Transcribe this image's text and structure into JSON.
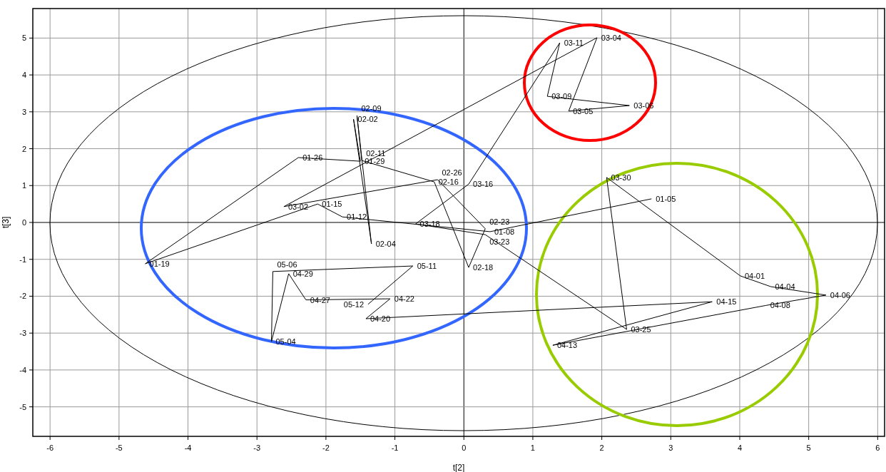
{
  "chart_data": {
    "type": "line",
    "xlabel": "t[2]",
    "ylabel": "t[3]",
    "xlim": [
      -6.25,
      6.1
    ],
    "ylim": [
      -5.8,
      5.8
    ],
    "xticks": [
      -6,
      -5,
      -4,
      -3,
      -2,
      -1,
      0,
      1,
      2,
      3,
      4,
      5,
      6
    ],
    "yticks": [
      -5,
      -4,
      -3,
      -2,
      -1,
      0,
      1,
      2,
      3,
      4,
      5
    ],
    "grid": true,
    "marker": "none",
    "line_style": "solid",
    "series": [
      {
        "color": "#000000",
        "x": [
          2.72,
          0.38,
          -1.76,
          -2.12,
          -4.62,
          -2.4,
          -1.5,
          -1.6,
          -1.34,
          -1.55,
          -1.48,
          -0.43,
          0.07,
          0.31,
          -0.38,
          -2.61,
          1.93,
          1.52,
          2.4,
          1.21,
          1.39,
          0.07,
          -0.7,
          0.31,
          2.36,
          2.07,
          4.01,
          4.45,
          5.25,
          4.38,
          1.29,
          3.6,
          -1.42,
          -1.07,
          -2.29,
          -2.54,
          -2.79,
          -2.77,
          -0.74,
          -1.39
        ],
        "values": [
          0.64,
          -0.25,
          0.15,
          0.5,
          -1.12,
          1.76,
          1.66,
          2.8,
          -0.58,
          2.9,
          1.68,
          1.1,
          -1.22,
          -0.17,
          1.16,
          0.43,
          5.01,
          3.02,
          3.17,
          3.42,
          4.87,
          1.04,
          -0.04,
          -0.33,
          -2.9,
          1.22,
          -1.45,
          -1.74,
          -1.97,
          -2.25,
          -3.33,
          -2.15,
          -2.61,
          -2.07,
          -2.1,
          -1.39,
          -3.23,
          -1.33,
          -1.18,
          -2.22
        ]
      }
    ],
    "annotations": [
      {
        "text": "01-05",
        "x": 2.72,
        "y": 0.64
      },
      {
        "text": "01-08",
        "x": 0.38,
        "y": -0.25
      },
      {
        "text": "01-12",
        "x": -1.76,
        "y": 0.15
      },
      {
        "text": "01-15",
        "x": -2.12,
        "y": 0.5
      },
      {
        "text": "01-19",
        "x": -4.62,
        "y": -1.12
      },
      {
        "text": "01-26",
        "x": -2.4,
        "y": 1.76
      },
      {
        "text": "01-29",
        "x": -1.5,
        "y": 1.66
      },
      {
        "text": "02-02",
        "x": -1.6,
        "y": 2.8
      },
      {
        "text": "02-04",
        "x": -1.34,
        "y": -0.58
      },
      {
        "text": "02-09",
        "x": -1.55,
        "y": 2.9
      },
      {
        "text": "02-11",
        "x": -1.48,
        "y": 1.68
      },
      {
        "text": "02-16",
        "x": -0.43,
        "y": 1.1
      },
      {
        "text": "02-18",
        "x": 0.07,
        "y": -1.22
      },
      {
        "text": "02-23",
        "x": 0.31,
        "y": -0.17
      },
      {
        "text": "02-26",
        "x": -0.38,
        "y": 1.16
      },
      {
        "text": "03-02",
        "x": -2.61,
        "y": 0.43
      },
      {
        "text": "03-04",
        "x": 1.93,
        "y": 5.01
      },
      {
        "text": "03-05",
        "x": 1.52,
        "y": 3.02
      },
      {
        "text": "03-06",
        "x": 2.4,
        "y": 3.17
      },
      {
        "text": "03-09",
        "x": 1.21,
        "y": 3.42
      },
      {
        "text": "03-11",
        "x": 1.39,
        "y": 4.87
      },
      {
        "text": "03-16",
        "x": 0.07,
        "y": 1.04
      },
      {
        "text": "03-18",
        "x": -0.7,
        "y": -0.04
      },
      {
        "text": "03-23",
        "x": 0.31,
        "y": -0.33
      },
      {
        "text": "03-25",
        "x": 2.36,
        "y": -2.9
      },
      {
        "text": "03-30",
        "x": 2.07,
        "y": 1.22
      },
      {
        "text": "04-01",
        "x": 4.01,
        "y": -1.45
      },
      {
        "text": "04-04",
        "x": 4.45,
        "y": -1.74
      },
      {
        "text": "04-06",
        "x": 5.25,
        "y": -1.97
      },
      {
        "text": "04-08",
        "x": 4.38,
        "y": -2.25
      },
      {
        "text": "04-13",
        "x": 1.29,
        "y": -3.33
      },
      {
        "text": "04-15",
        "x": 3.6,
        "y": -2.15
      },
      {
        "text": "04-20",
        "x": -1.42,
        "y": -2.61
      },
      {
        "text": "04-22",
        "x": -1.07,
        "y": -2.07
      },
      {
        "text": "04-27",
        "x": -2.29,
        "y": -2.1
      },
      {
        "text": "04-29",
        "x": -2.54,
        "y": -1.39
      },
      {
        "text": "05-04",
        "x": -2.79,
        "y": -3.23
      },
      {
        "text": "05-06",
        "x": -2.77,
        "y": -1.33
      },
      {
        "text": "05-11",
        "x": -0.74,
        "y": -1.18
      },
      {
        "text": "05-12",
        "x": -1.39,
        "y": -2.22
      }
    ]
  }
}
